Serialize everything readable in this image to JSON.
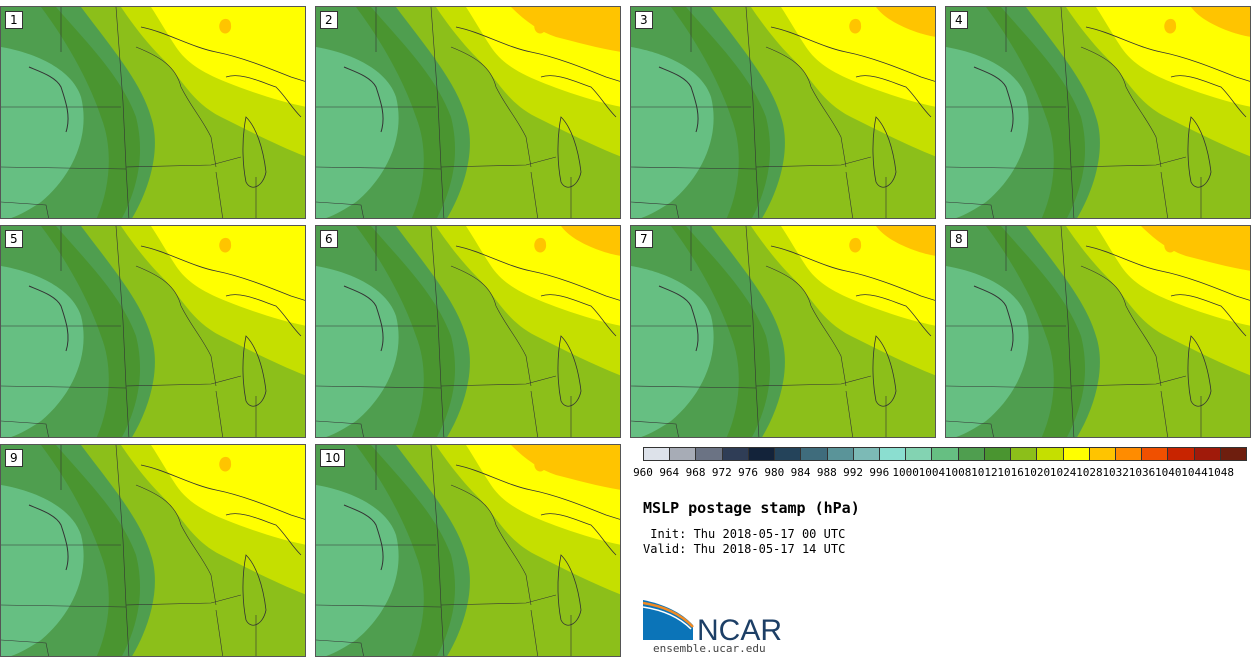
{
  "panels": [
    {
      "label": "1",
      "variant": 0
    },
    {
      "label": "2",
      "variant": 2
    },
    {
      "label": "3",
      "variant": 1
    },
    {
      "label": "4",
      "variant": 1
    },
    {
      "label": "5",
      "variant": 0
    },
    {
      "label": "6",
      "variant": 1
    },
    {
      "label": "7",
      "variant": 1
    },
    {
      "label": "8",
      "variant": 2
    },
    {
      "label": "9",
      "variant": 0
    },
    {
      "label": "10",
      "variant": 2
    }
  ],
  "colorbar": {
    "ticks": [
      "960",
      "964",
      "968",
      "972",
      "976",
      "980",
      "984",
      "988",
      "992",
      "996",
      "1000",
      "1004",
      "1008",
      "1012",
      "1016",
      "1020",
      "1024",
      "1028",
      "1032",
      "1036",
      "1040",
      "1044",
      "1048"
    ],
    "colors": [
      "#dde2ea",
      "#a7acb6",
      "#6b7384",
      "#2f3d56",
      "#13233a",
      "#24435a",
      "#3f6c7c",
      "#5a9499",
      "#7cbab6",
      "#8bded0",
      "#83d3b2",
      "#66bf82",
      "#4f9e4f",
      "#4a9530",
      "#8cbf1a",
      "#c5df00",
      "#ffff00",
      "#ffc400",
      "#ff8c00",
      "#f05000",
      "#c82400",
      "#a01a0a",
      "#6e1e0e"
    ]
  },
  "title": "MSLP postage stamp (hPa)",
  "init": " Init: Thu 2018-05-17 00 UTC",
  "valid": "Valid: Thu 2018-05-17 14 UTC",
  "logo": {
    "text": "NCAR",
    "url": "ensemble.ucar.edu",
    "blue": "#0b74b8",
    "orange": "#f08a24"
  }
}
